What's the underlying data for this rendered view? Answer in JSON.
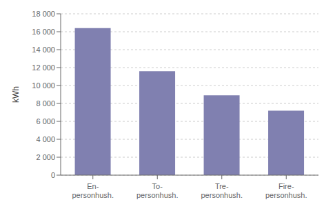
{
  "chart_data": {
    "type": "bar",
    "categories": [
      "En-\npersonhush.",
      "To-\npersonhush.",
      "Tre-\npersonhush.",
      "Fire-\npersonhush."
    ],
    "values": [
      16400,
      11600,
      8900,
      7200
    ],
    "color": "#8080b0",
    "ylabel": "kWh",
    "ylim": [
      0,
      18000
    ],
    "yticks": [
      0,
      {
        "value": 2000,
        "label": "2 000"
      },
      {
        "value": 4000,
        "label": "4 000"
      },
      {
        "value": 6000,
        "label": "6 000"
      },
      {
        "value": 8000,
        "label": "8 000"
      },
      {
        "value": 10000,
        "label": "10 000"
      },
      {
        "value": 12000,
        "label": "12 000"
      },
      {
        "value": 14000,
        "label": "14 000"
      },
      {
        "value": 16000,
        "label": "16 000"
      },
      {
        "value": 18000,
        "label": "18 000"
      }
    ],
    "grid": true
  }
}
